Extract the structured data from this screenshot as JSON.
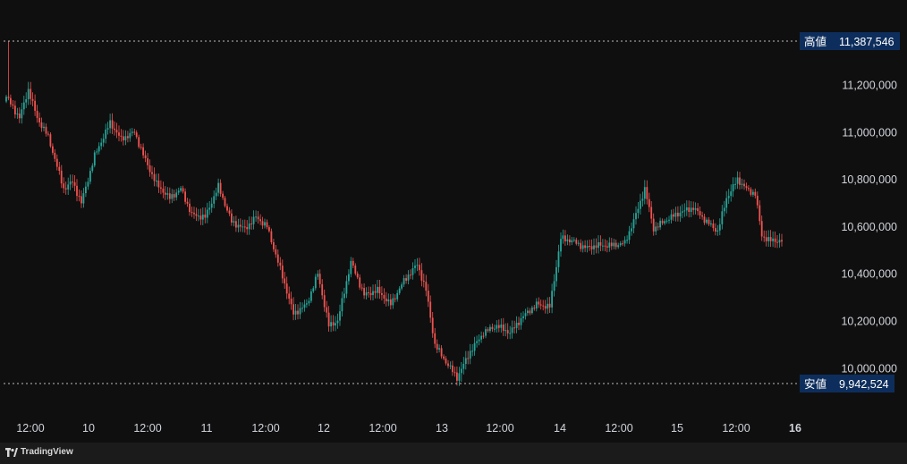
{
  "chart_data": {
    "type": "candlestick",
    "y_ticks": [
      "11,200,000",
      "11,000,000",
      "10,800,000",
      "10,600,000",
      "10,400,000",
      "10,200,000",
      "10,000,000"
    ],
    "y_tick_values": [
      11200000,
      11000000,
      10800000,
      10600000,
      10400000,
      10200000,
      10000000
    ],
    "x_ticks": [
      "12:00",
      "10",
      "12:00",
      "11",
      "12:00",
      "12",
      "12:00",
      "13",
      "12:00",
      "14",
      "12:00",
      "15",
      "12:00",
      "16"
    ],
    "high": {
      "label": "高値",
      "value": "11,387,546",
      "number": 11387546
    },
    "low": {
      "label": "安値",
      "value": "9,942,524",
      "number": 9942524
    },
    "close_path": [
      [
        0,
        11150000
      ],
      [
        6,
        11060000
      ],
      [
        10,
        11180000
      ],
      [
        14,
        11060000
      ],
      [
        19,
        10980000
      ],
      [
        26,
        10760000
      ],
      [
        30,
        10790000
      ],
      [
        34,
        10700000
      ],
      [
        40,
        10900000
      ],
      [
        47,
        11040000
      ],
      [
        52,
        10970000
      ],
      [
        58,
        11000000
      ],
      [
        63,
        10880000
      ],
      [
        68,
        10780000
      ],
      [
        74,
        10720000
      ],
      [
        79,
        10760000
      ],
      [
        84,
        10650000
      ],
      [
        90,
        10640000
      ],
      [
        96,
        10770000
      ],
      [
        102,
        10620000
      ],
      [
        108,
        10590000
      ],
      [
        113,
        10640000
      ],
      [
        118,
        10600000
      ],
      [
        124,
        10420000
      ],
      [
        130,
        10230000
      ],
      [
        136,
        10270000
      ],
      [
        141,
        10400000
      ],
      [
        146,
        10180000
      ],
      [
        150,
        10200000
      ],
      [
        156,
        10450000
      ],
      [
        162,
        10310000
      ],
      [
        168,
        10330000
      ],
      [
        174,
        10270000
      ],
      [
        180,
        10370000
      ],
      [
        186,
        10440000
      ],
      [
        190,
        10330000
      ],
      [
        194,
        10100000
      ],
      [
        198,
        10040000
      ],
      [
        204,
        9960000
      ],
      [
        210,
        10070000
      ],
      [
        216,
        10150000
      ],
      [
        222,
        10180000
      ],
      [
        228,
        10150000
      ],
      [
        234,
        10220000
      ],
      [
        240,
        10270000
      ],
      [
        246,
        10260000
      ],
      [
        251,
        10550000
      ],
      [
        256,
        10540000
      ],
      [
        262,
        10510000
      ],
      [
        268,
        10520000
      ],
      [
        274,
        10520000
      ],
      [
        280,
        10530000
      ],
      [
        285,
        10650000
      ],
      [
        289,
        10760000
      ],
      [
        293,
        10590000
      ],
      [
        299,
        10630000
      ],
      [
        305,
        10660000
      ],
      [
        311,
        10680000
      ],
      [
        317,
        10620000
      ],
      [
        322,
        10580000
      ],
      [
        326,
        10720000
      ],
      [
        331,
        10800000
      ],
      [
        336,
        10750000
      ],
      [
        339,
        10740000
      ],
      [
        342,
        10560000
      ],
      [
        346,
        10540000
      ],
      [
        351,
        10540000
      ]
    ]
  },
  "footer": {
    "brand": "TradingView"
  }
}
